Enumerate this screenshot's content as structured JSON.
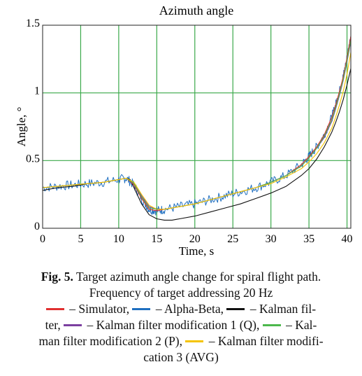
{
  "chart_data": {
    "type": "line",
    "title": "Azimuth angle",
    "xlabel": "Time, s",
    "ylabel": "Angle, °",
    "xlim": [
      0,
      40.5
    ],
    "ylim": [
      0,
      1.5
    ],
    "xticks": [
      "0",
      "5",
      "10",
      "15",
      "20",
      "25",
      "30",
      "35",
      "40"
    ],
    "yticks": [
      "0",
      "0.5",
      "1",
      "1.5"
    ],
    "grid": true,
    "series": [
      {
        "name": "Simulator",
        "color": "#e03030",
        "x": [
          0,
          2,
          4,
          6,
          8,
          10,
          11,
          12,
          13,
          14,
          15,
          16,
          18,
          20,
          22,
          24,
          26,
          28,
          30,
          32,
          34,
          35,
          36,
          37,
          38,
          38.5,
          39,
          39.5,
          40,
          40.5
        ],
        "y": [
          0.3,
          0.31,
          0.32,
          0.33,
          0.34,
          0.36,
          0.37,
          0.32,
          0.22,
          0.14,
          0.13,
          0.14,
          0.16,
          0.18,
          0.21,
          0.24,
          0.27,
          0.3,
          0.34,
          0.39,
          0.47,
          0.53,
          0.6,
          0.69,
          0.82,
          0.91,
          1.01,
          1.12,
          1.26,
          1.42
        ]
      },
      {
        "name": "Alpha-Beta",
        "color": "#1f6fc0",
        "x": [
          0,
          2,
          4,
          6,
          8,
          10,
          11,
          12,
          13,
          14,
          15,
          16,
          18,
          20,
          22,
          24,
          26,
          28,
          30,
          32,
          34,
          35,
          36,
          37,
          38,
          38.5,
          39,
          39.5,
          40,
          40.5
        ],
        "y": [
          0.3,
          0.31,
          0.32,
          0.33,
          0.34,
          0.36,
          0.37,
          0.32,
          0.22,
          0.14,
          0.13,
          0.14,
          0.16,
          0.18,
          0.21,
          0.24,
          0.27,
          0.3,
          0.34,
          0.39,
          0.47,
          0.53,
          0.6,
          0.69,
          0.82,
          0.91,
          1.01,
          1.12,
          1.26,
          1.42
        ]
      },
      {
        "name": "Kalman filter",
        "color": "#111111",
        "x": [
          0,
          2,
          4,
          6,
          8,
          10,
          11,
          11.5,
          12,
          13,
          14,
          15,
          16,
          17,
          18,
          20,
          22,
          24,
          26,
          28,
          30,
          32,
          34,
          35,
          36,
          37,
          38,
          38.5,
          39,
          39.5,
          40,
          40.5
        ],
        "y": [
          0.28,
          0.3,
          0.31,
          0.33,
          0.34,
          0.36,
          0.37,
          0.36,
          0.3,
          0.18,
          0.1,
          0.07,
          0.06,
          0.06,
          0.07,
          0.09,
          0.12,
          0.15,
          0.18,
          0.22,
          0.26,
          0.31,
          0.39,
          0.44,
          0.51,
          0.6,
          0.71,
          0.78,
          0.86,
          0.95,
          1.06,
          1.18
        ]
      },
      {
        "name": "Kalman filter modification 1 (Q)",
        "color": "#7b3fa0",
        "x": [
          0,
          2,
          4,
          6,
          8,
          10,
          11,
          12,
          13,
          14,
          15,
          16,
          18,
          20,
          22,
          24,
          26,
          28,
          30,
          32,
          34,
          35,
          36,
          37,
          38,
          38.5,
          39,
          39.5,
          40,
          40.5
        ],
        "y": [
          0.3,
          0.31,
          0.32,
          0.33,
          0.34,
          0.36,
          0.37,
          0.33,
          0.24,
          0.16,
          0.14,
          0.14,
          0.16,
          0.18,
          0.21,
          0.24,
          0.27,
          0.3,
          0.34,
          0.39,
          0.46,
          0.52,
          0.59,
          0.67,
          0.79,
          0.88,
          0.98,
          1.09,
          1.23,
          1.38
        ]
      },
      {
        "name": "Kalman filter modification 2 (P)",
        "color": "#4cb84c",
        "x": [
          0,
          2,
          4,
          6,
          8,
          10,
          11,
          12,
          13,
          14,
          15,
          16,
          18,
          20,
          22,
          24,
          26,
          28,
          30,
          32,
          34,
          35,
          36,
          37,
          38,
          38.5,
          39,
          39.5,
          40,
          40.5
        ],
        "y": [
          0.3,
          0.31,
          0.32,
          0.33,
          0.34,
          0.36,
          0.37,
          0.33,
          0.23,
          0.15,
          0.14,
          0.14,
          0.16,
          0.18,
          0.21,
          0.24,
          0.27,
          0.3,
          0.34,
          0.39,
          0.46,
          0.52,
          0.59,
          0.68,
          0.8,
          0.89,
          0.99,
          1.1,
          1.24,
          1.39
        ]
      },
      {
        "name": "Kalman filter modification 3 (AVG)",
        "color": "#f5c400",
        "x": [
          0,
          2,
          4,
          6,
          8,
          10,
          11,
          12,
          13,
          14,
          15,
          16,
          18,
          20,
          22,
          24,
          26,
          28,
          30,
          32,
          34,
          35,
          36,
          37,
          38,
          38.5,
          39,
          39.5,
          40,
          40.5
        ],
        "y": [
          0.3,
          0.31,
          0.32,
          0.33,
          0.34,
          0.36,
          0.37,
          0.34,
          0.25,
          0.17,
          0.14,
          0.14,
          0.16,
          0.18,
          0.21,
          0.24,
          0.27,
          0.3,
          0.33,
          0.38,
          0.44,
          0.49,
          0.55,
          0.63,
          0.74,
          0.82,
          0.91,
          1.01,
          1.14,
          1.3
        ]
      }
    ]
  },
  "caption": {
    "label": "Fig. 5.",
    "line1": " Target azimuth angle change for spiral flight path.",
    "line2": "Frequency of target addressing 20 Hz",
    "legend_sep": " – ",
    "legend_names": [
      "Simulator,",
      "Alpha-Beta,",
      "Kalman fil-",
      "ter,",
      "Kalman filter modification  1 (Q),",
      "Kal-",
      "man filter modification 2 (P),",
      "Kalman filter modifi-",
      "cation 3 (AVG)"
    ]
  }
}
